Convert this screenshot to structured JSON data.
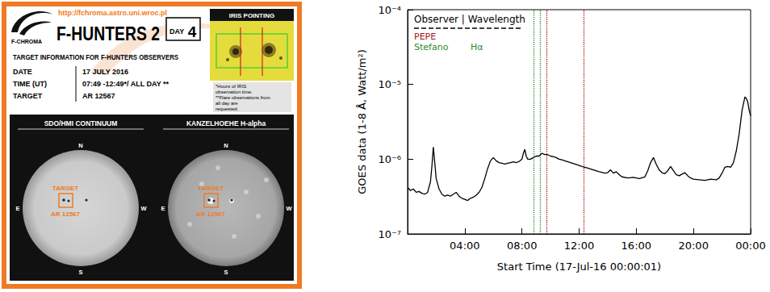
{
  "poster": {
    "url": "http://fchroma.astro.uni.wroc.pl",
    "logo": "F-CHROMA",
    "title": "F-HUNTERS 2",
    "day_label": "DAY",
    "day": 4,
    "iris_title": "IRIS POINTING",
    "heading": "TARGET INFORMATION FOR F-HUNTERS OBSERVERS",
    "rows": [
      [
        "DATE",
        "17 JULY 2016"
      ],
      [
        "TIME (UT)",
        "07:49 -12:49*/ ALL DAY **"
      ],
      [
        "TARGET",
        "AR 12567"
      ]
    ],
    "notes": [
      "*Hours of IRIS",
      "observation time.",
      "**Flare observations from",
      "all day are",
      "requested."
    ],
    "panels": [
      "SDO/HMI CONTINUUM",
      "KANZELHOEHE H-alpha"
    ],
    "compass": {
      "north": "N",
      "south": "S",
      "east": "E",
      "west": "W"
    },
    "target_label": "TARGET",
    "target": "AR 12567"
  },
  "chart_data": {
    "type": "line",
    "x_label": "Start Time (17-Jul-16 00:00:01)",
    "y_label": "GOES data (1-8 Å, Watt/m²)",
    "log": "y",
    "grid": false,
    "legend": "upper left",
    "color": "#000000",
    "line_style": "solid",
    "xlim": [
      0,
      24
    ],
    "ylim": [
      1e-07,
      0.0001
    ],
    "xticks": [
      {
        "value": 4,
        "label": "04:00"
      },
      {
        "value": 8,
        "label": "08:00"
      },
      {
        "value": 12,
        "label": "12:00"
      },
      {
        "value": 16,
        "label": "16:00"
      },
      {
        "value": 20,
        "label": "20:00"
      },
      {
        "value": 24,
        "label": "00:00"
      }
    ],
    "yticks": [
      {
        "value": 1e-07,
        "label": "10⁻⁷"
      },
      {
        "value": 1e-06,
        "label": "10⁻⁶"
      },
      {
        "value": 1e-05,
        "label": "10⁻⁵"
      },
      {
        "value": 0.0001,
        "label": "10⁻⁴"
      }
    ],
    "x": [
      0,
      0.2,
      0.4,
      0.6,
      0.8,
      1.0,
      1.2,
      1.4,
      1.6,
      1.7,
      1.8,
      1.9,
      2.0,
      2.2,
      2.4,
      2.6,
      2.8,
      3.0,
      3.2,
      3.4,
      3.6,
      3.8,
      4.0,
      4.2,
      4.4,
      4.6,
      4.8,
      5.0,
      5.2,
      5.4,
      5.6,
      5.8,
      6.0,
      6.2,
      6.4,
      6.6,
      6.8,
      7.0,
      7.2,
      7.4,
      7.6,
      7.8,
      8.0,
      8.1,
      8.2,
      8.3,
      8.4,
      8.6,
      8.8,
      9.0,
      9.2,
      9.4,
      9.6,
      9.8,
      10.0,
      10.2,
      10.4,
      10.6,
      10.8,
      11.0,
      11.4,
      11.8,
      12.2,
      12.6,
      13.0,
      13.4,
      13.8,
      14.0,
      14.2,
      14.4,
      14.6,
      14.8,
      15.0,
      15.4,
      15.8,
      16.2,
      16.6,
      16.8,
      17.0,
      17.2,
      17.4,
      17.6,
      17.8,
      18.0,
      18.2,
      18.4,
      18.6,
      18.8,
      19.0,
      19.2,
      19.4,
      19.6,
      19.8,
      20.0,
      20.4,
      20.8,
      21.2,
      21.6,
      21.8,
      22.0,
      22.2,
      22.4,
      22.6,
      22.8,
      23.0,
      23.2,
      23.4,
      23.6,
      23.7,
      23.8,
      23.9,
      24.0
    ],
    "values": [
      4.2e-07,
      3.8e-07,
      4e-07,
      3.6e-07,
      3.7e-07,
      3.5e-07,
      3.4e-07,
      3.6e-07,
      5e-07,
      8e-07,
      1.45e-06,
      9e-07,
      5.5e-07,
      4e-07,
      3.4e-07,
      3.2e-07,
      3.3e-07,
      3.2e-07,
      3.4e-07,
      3.6e-07,
      3.2e-07,
      3e-07,
      2.9e-07,
      2.8e-07,
      3e-07,
      3.1e-07,
      3.3e-07,
      3.6e-07,
      4.2e-07,
      5.5e-07,
      7.5e-07,
      9.5e-07,
      1.05e-06,
      9.5e-07,
      9e-07,
      8.8e-07,
      8.6e-07,
      8.8e-07,
      9e-07,
      9.2e-07,
      9e-07,
      9.3e-07,
      1e-06,
      1.2e-06,
      1.35e-06,
      1.1e-06,
      1e-06,
      1e-06,
      1.05e-06,
      1.1e-06,
      1.1e-06,
      1.2e-06,
      1.15e-06,
      1.15e-06,
      1.1e-06,
      1.08e-06,
      1.05e-06,
      1e-06,
      9.8e-07,
      9.5e-07,
      9e-07,
      8.5e-07,
      8e-07,
      7.6e-07,
      7.2e-07,
      6.8e-07,
      6.5e-07,
      6.6e-07,
      7.2e-07,
      6.5e-07,
      6.8e-07,
      6.2e-07,
      5.8e-07,
      5.6e-07,
      5.7e-07,
      5.5e-07,
      5.8e-07,
      7e-07,
      9e-07,
      1.05e-06,
      8.5e-07,
      7.2e-07,
      6.6e-07,
      6.4e-07,
      7e-07,
      8e-07,
      7e-07,
      6.2e-07,
      6e-07,
      6.3e-07,
      6.6e-07,
      6e-07,
      5.6e-07,
      5.4e-07,
      5.3e-07,
      5.2e-07,
      5.4e-07,
      5.3e-07,
      5.6e-07,
      6.5e-07,
      7.8e-07,
      8e-07,
      7.8e-07,
      9e-07,
      1.3e-06,
      2.2e-06,
      4.5e-06,
      6.8e-06,
      6.5e-06,
      5.8e-06,
      4.5e-06,
      3.8e-06
    ],
    "observers_title": "Observer | Wavelength",
    "observers": [
      {
        "name": "PEPE",
        "color": "#a31515",
        "line_style": "dotted",
        "x": [
          9.7,
          12.3
        ]
      },
      {
        "name": "Stefano",
        "wavelength": "Hα",
        "color": "#2a8c2a",
        "line_style": "dotted",
        "x": [
          8.8,
          9.3
        ]
      }
    ]
  }
}
